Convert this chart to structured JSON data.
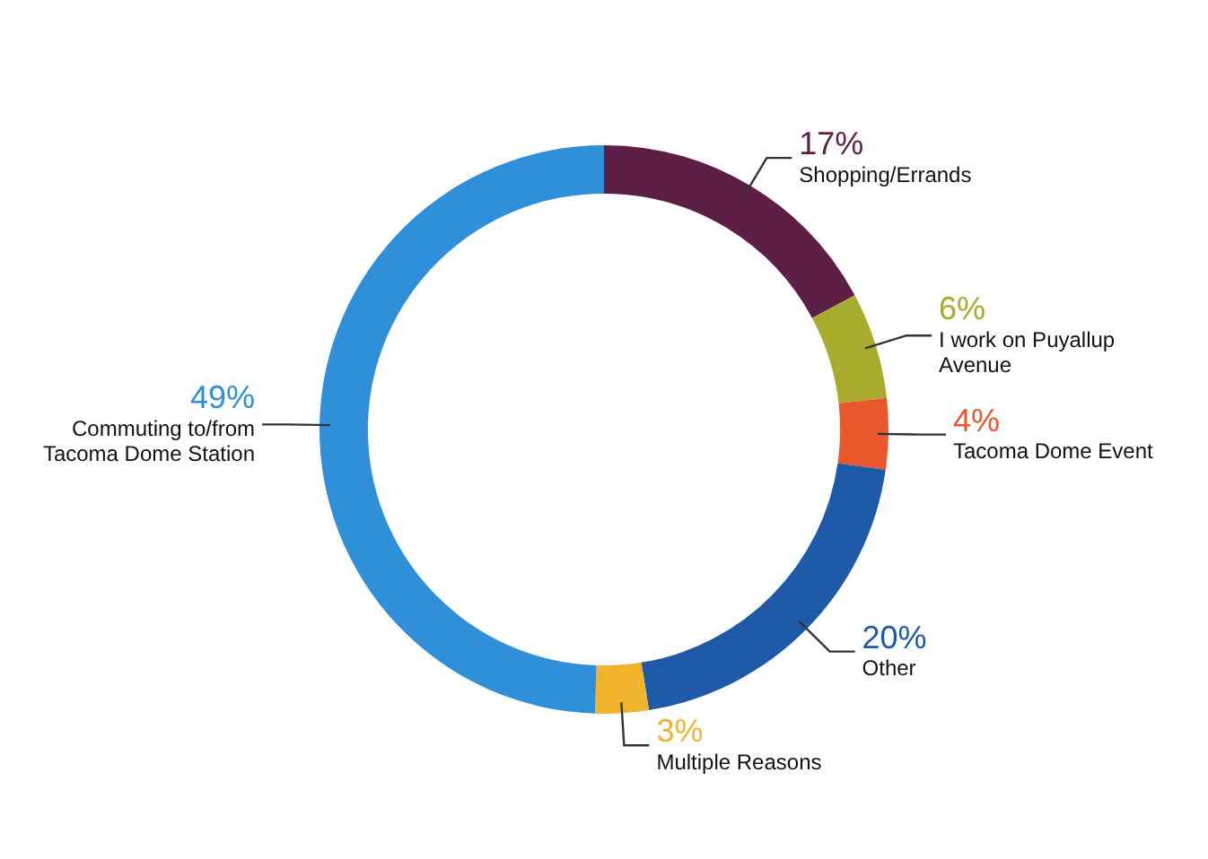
{
  "chart_data": {
    "type": "donut",
    "categories": [
      "Shopping/Errands",
      "I work on Puyallup Avenue",
      "Tacoma Dome Event",
      "Other",
      "Multiple Reasons",
      "Commuting to/from Tacoma Dome Station"
    ],
    "values": [
      17,
      6,
      4,
      20,
      3,
      49
    ],
    "colors": [
      "#5e1f47",
      "#a9ab2e",
      "#e8582c",
      "#1f5aa8",
      "#f0b42c",
      "#2f8fd8"
    ],
    "value_labels": [
      "17%",
      "6%",
      "4%",
      "20%",
      "3%",
      "49%"
    ]
  }
}
